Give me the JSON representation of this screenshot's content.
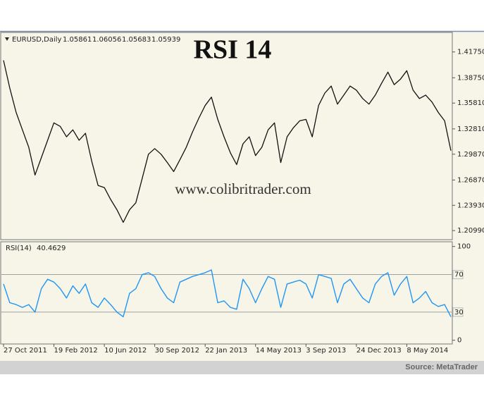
{
  "chart_data": {
    "type": "line",
    "title": "RSI 14",
    "watermark": "www.colibritrader.com",
    "source": "Source: MetaTrader",
    "categories": [
      "27 Oct 2011",
      null,
      null,
      null,
      null,
      null,
      null,
      null,
      "19 Feb 2012",
      null,
      null,
      null,
      null,
      null,
      null,
      null,
      "10 Jun 2012",
      null,
      null,
      null,
      null,
      null,
      null,
      null,
      "30 Sep 2012",
      null,
      null,
      null,
      null,
      null,
      null,
      null,
      "22 Jan 2013",
      null,
      null,
      null,
      null,
      null,
      null,
      null,
      "14 May 2013",
      null,
      null,
      null,
      null,
      null,
      null,
      null,
      "3 Sep 2013",
      null,
      null,
      null,
      null,
      null,
      null,
      null,
      "24 Dec 2013",
      null,
      null,
      null,
      null,
      null,
      null,
      null,
      "8 May 2014",
      null,
      null,
      null,
      null,
      null,
      null,
      null
    ],
    "series": [
      {
        "name": "EURUSD,Daily",
        "ohlc": [
          1.05861,
          1.06056,
          1.05683,
          1.05939
        ],
        "color": "#111111",
        "values": [
          1.4078,
          1.3755,
          1.3472,
          1.327,
          1.3068,
          1.2745,
          1.2947,
          1.3149,
          1.3351,
          1.331,
          1.3189,
          1.327,
          1.3149,
          1.323,
          1.2906,
          1.2624,
          1.2599,
          1.2462,
          1.2341,
          1.2195,
          1.2341,
          1.2422,
          1.2704,
          1.2987,
          1.3052,
          1.2987,
          1.289,
          1.2785,
          1.2923,
          1.3068,
          1.3246,
          1.3407,
          1.3553,
          1.365,
          1.3391,
          1.3189,
          1.3003,
          1.2866,
          1.3108,
          1.3189,
          1.2971,
          1.3068,
          1.327,
          1.3351,
          1.289,
          1.3189,
          1.3294,
          1.3375,
          1.3391,
          1.3189,
          1.3553,
          1.3698,
          1.3779,
          1.3569,
          1.3674,
          1.3779,
          1.3731,
          1.3634,
          1.3569,
          1.3674,
          1.3811,
          1.3941,
          1.3795,
          1.386,
          1.3957,
          1.3731,
          1.3634,
          1.3674,
          1.3593,
          1.3472,
          1.3375,
          1.3028
        ]
      },
      {
        "name": "RSI(14)",
        "current": 40.4629,
        "color": "#2196f3",
        "axis": "y2",
        "values": [
          60,
          40,
          38,
          35,
          38,
          30,
          55,
          65,
          62,
          55,
          45,
          58,
          50,
          60,
          40,
          35,
          45,
          38,
          30,
          25,
          50,
          55,
          70,
          72,
          68,
          55,
          45,
          40,
          62,
          65,
          68,
          70,
          72,
          75,
          40,
          42,
          35,
          33,
          65,
          55,
          40,
          55,
          68,
          65,
          35,
          60,
          62,
          64,
          60,
          45,
          70,
          68,
          66,
          40,
          60,
          65,
          55,
          45,
          40,
          60,
          68,
          72,
          48,
          60,
          68,
          40,
          45,
          52,
          40,
          36,
          38,
          25
        ]
      }
    ],
    "ylim": [
      1.1994,
      1.4402
    ],
    "yticks": [
      {
        "value": 1.4175,
        "label": "1.41750"
      },
      {
        "value": 1.3875,
        "label": "1.38750"
      },
      {
        "value": 1.3581,
        "label": "1.35810"
      },
      {
        "value": 1.3281,
        "label": "1.32810"
      },
      {
        "value": 1.2987,
        "label": "1.29870"
      },
      {
        "value": 1.2687,
        "label": "1.26870"
      },
      {
        "value": 1.2393,
        "label": "1.23930"
      },
      {
        "value": 1.2099,
        "label": "1.20990"
      }
    ],
    "y2lim": [
      -4,
      105
    ],
    "y2ticks": [
      0,
      100
    ],
    "y2levels": [
      30,
      70
    ]
  }
}
